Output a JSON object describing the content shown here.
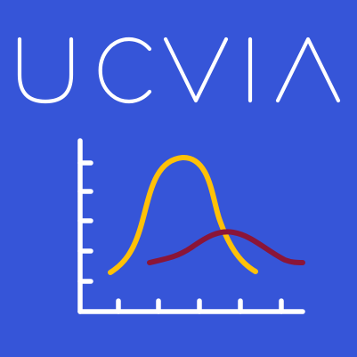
{
  "logo": {
    "wordmark": "UCVIA",
    "background_color": "#3655d8",
    "foreground_color": "#ffffff",
    "curve_primary_color": "#ffc107",
    "curve_secondary_color": "#8b1538",
    "icon": "distribution-curves-chart-icon"
  }
}
